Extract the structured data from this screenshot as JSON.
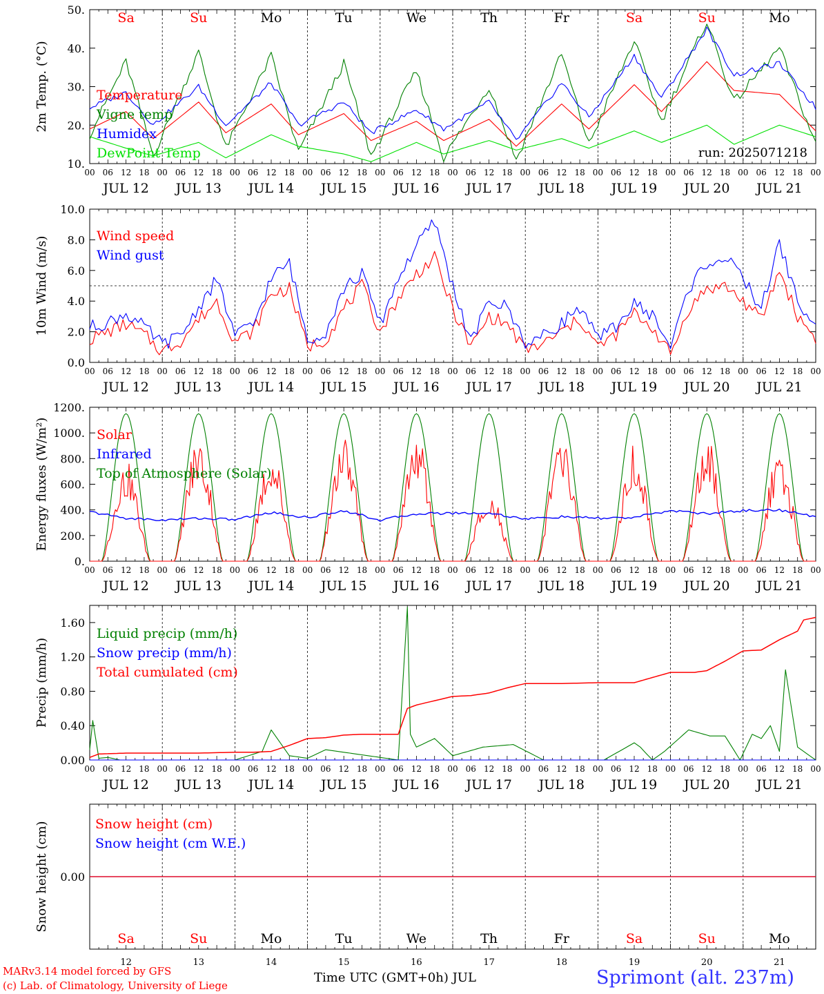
{
  "header": {
    "run_label": "run: 2025071218"
  },
  "footer": {
    "credit_1": "MARv3.14 model forced by GFS",
    "credit_2": "(c) Lab. of Climatology, University of Liege",
    "x_title": "Time UTC (GMT+0h) JUL",
    "location": "Sprimont (alt. 237m)",
    "day_numbers": [
      "12",
      "13",
      "14",
      "15",
      "16",
      "17",
      "18",
      "19",
      "20",
      "21"
    ]
  },
  "colors": {
    "red": "#ff0000",
    "blue": "#0000ff",
    "green": "#008000",
    "lightgreen": "#00e000",
    "location": "#3333ff"
  },
  "chart_data": [
    {
      "type": "line",
      "title": "",
      "ylabel": "2m Temp. (°C)",
      "ylim": [
        10,
        50
      ],
      "ytick_labels": [
        "10.",
        "20.",
        "30.",
        "40.",
        "50."
      ],
      "x_hour_labels": [
        "00",
        "06",
        "12",
        "18"
      ],
      "day_labels": [
        "JUL 12",
        "JUL 13",
        "JUL 14",
        "JUL 15",
        "JUL 16",
        "JUL 17",
        "JUL 18",
        "JUL 19",
        "JUL 20",
        "JUL 21"
      ],
      "weekday_labels": [
        "Sa",
        "Su",
        "Mo",
        "Tu",
        "We",
        "Th",
        "Fr",
        "Sa",
        "Su",
        "Mo"
      ],
      "weekend_flags": [
        true,
        true,
        false,
        false,
        false,
        false,
        false,
        true,
        true,
        false
      ],
      "x_unit": "hours from JUL 12 00 UTC",
      "x": [
        0,
        12,
        21,
        36,
        45,
        60,
        69,
        84,
        93,
        108,
        117,
        132,
        141,
        156,
        165,
        180,
        189,
        204,
        213,
        228,
        240
      ],
      "series": [
        {
          "name": "Temperature",
          "color": "#ff0000",
          "values": [
            19,
            23.5,
            16.5,
            26,
            18,
            25.5,
            17.5,
            23,
            16,
            21,
            16,
            21.5,
            14.5,
            25.5,
            19,
            30.5,
            23.5,
            36.5,
            29,
            28,
            18.5
          ]
        },
        {
          "name": "Vigne temp",
          "color": "#008000",
          "values": [
            17.5,
            36.5,
            12,
            39,
            14,
            38,
            13,
            36,
            12,
            34,
            11.5,
            30,
            11,
            38.5,
            15,
            42,
            21,
            47,
            26,
            40,
            15
          ]
        },
        {
          "name": "Humidex",
          "color": "#0000ff",
          "values": [
            24.5,
            28.5,
            20,
            30,
            20,
            31,
            20,
            26,
            18,
            24,
            19,
            26,
            16,
            31,
            22,
            38,
            27,
            45,
            33,
            36,
            24.5
          ]
        },
        {
          "name": "DewPoint Temp",
          "color": "#00e000",
          "values": [
            17,
            14,
            12,
            15.5,
            11.5,
            17.5,
            14.5,
            12.5,
            10.5,
            15.5,
            12.5,
            16,
            13.5,
            16.5,
            14,
            18.5,
            15.5,
            20,
            15,
            20,
            17
          ]
        }
      ]
    },
    {
      "type": "line",
      "title": "",
      "ylabel": "10m Wind (m/s)",
      "ylim": [
        0,
        10
      ],
      "ytick_labels": [
        "0.0",
        "2.0",
        "4.0",
        "6.0",
        "8.0",
        "10.0"
      ],
      "reference_line": 5,
      "x": [
        0,
        6,
        12,
        18,
        24,
        30,
        36,
        42,
        48,
        54,
        60,
        66,
        72,
        78,
        84,
        90,
        96,
        102,
        108,
        114,
        120,
        126,
        132,
        138,
        144,
        150,
        156,
        162,
        168,
        174,
        180,
        186,
        192,
        198,
        204,
        210,
        216,
        222,
        228,
        234,
        240
      ],
      "series": [
        {
          "name": "Wind speed",
          "color": "#ff0000",
          "values": [
            1.5,
            2,
            2.5,
            1.8,
            0.7,
            1.4,
            2.8,
            4,
            1.4,
            2,
            4.5,
            4.8,
            1,
            1.5,
            3.5,
            5,
            2,
            4.2,
            5.8,
            6.8,
            3.5,
            1,
            3,
            2.5,
            0.8,
            1.2,
            2,
            2.8,
            1,
            1.8,
            3.2,
            2.3,
            0.5,
            3.5,
            4.8,
            5,
            4,
            2.8,
            6,
            3,
            1.6
          ]
        },
        {
          "name": "Wind gust",
          "color": "#0000ff",
          "values": [
            2.3,
            2.6,
            3.2,
            2.3,
            1.2,
            1.7,
            3.6,
            5.4,
            1.8,
            2.4,
            5.5,
            6.5,
            1.5,
            2,
            4.8,
            5.8,
            2.5,
            5.5,
            7.6,
            9.2,
            5,
            1.3,
            4,
            3.6,
            1.3,
            1.7,
            2.6,
            3.6,
            1.5,
            2.4,
            3.8,
            3.1,
            1,
            4.8,
            6.5,
            6.8,
            5.5,
            3.5,
            7.8,
            4,
            2.2
          ]
        }
      ]
    },
    {
      "type": "line",
      "title": "",
      "ylabel": "Energy fluxes (W/m²)",
      "ylim": [
        0,
        1200
      ],
      "ytick_labels": [
        "0.",
        "200.",
        "400.",
        "600.",
        "800.",
        "1000.",
        "1200."
      ],
      "series": [
        {
          "name": "Solar",
          "color": "#ff0000",
          "peaks": [
            680,
            860,
            780,
            880,
            870,
            500,
            850,
            790,
            850,
            740
          ]
        },
        {
          "name": "Infrared",
          "color": "#0000ff",
          "x": [
            0,
            12,
            24,
            36,
            48,
            60,
            72,
            84,
            96,
            108,
            120,
            132,
            144,
            156,
            168,
            180,
            192,
            204,
            216,
            228,
            240
          ],
          "values": [
            385,
            335,
            320,
            335,
            325,
            380,
            340,
            395,
            320,
            370,
            375,
            375,
            330,
            345,
            335,
            340,
            395,
            370,
            395,
            400,
            345
          ]
        },
        {
          "name": "Top of Atmosphere (Solar)",
          "color": "#008000",
          "peak": 1150
        }
      ]
    },
    {
      "type": "line",
      "title": "",
      "ylabel": "Precip (mm/h)",
      "ylim": [
        0,
        1.8
      ],
      "ytick_labels": [
        "0.00",
        "0.40",
        "0.80",
        "1.20",
        "1.60"
      ],
      "series": [
        {
          "name": "Liquid precip (mm/h)",
          "color": "#008000",
          "x": [
            0,
            1,
            3,
            6,
            10,
            48,
            57,
            60,
            62,
            66,
            72,
            78,
            102,
            105,
            106,
            108,
            114,
            120,
            130,
            140,
            150,
            170,
            180,
            182,
            186,
            190,
            198,
            205,
            210,
            215,
            219,
            222,
            225,
            228,
            230,
            234,
            238,
            240
          ],
          "values": [
            0.12,
            0.46,
            0.02,
            0.03,
            0.0,
            0.0,
            0.1,
            0.35,
            0.25,
            0.05,
            0.02,
            0.12,
            0.0,
            1.78,
            0.3,
            0.15,
            0.25,
            0.05,
            0.15,
            0.18,
            0.0,
            0.0,
            0.2,
            0.15,
            0.0,
            0.1,
            0.35,
            0.28,
            0.28,
            0.0,
            0.3,
            0.25,
            0.4,
            0.1,
            1.05,
            0.15,
            0.05,
            0.0
          ]
        },
        {
          "name": "Snow precip (mm/h)",
          "color": "#0000ff",
          "x": [
            0,
            240
          ],
          "values": [
            0,
            0
          ]
        },
        {
          "name": "Total cumulated (cm)",
          "color": "#ff0000",
          "x": [
            0,
            3,
            12,
            24,
            36,
            48,
            54,
            60,
            66,
            72,
            78,
            84,
            90,
            96,
            102,
            105,
            108,
            114,
            120,
            126,
            132,
            138,
            144,
            156,
            168,
            174,
            180,
            192,
            200,
            204,
            210,
            216,
            222,
            228,
            234,
            236,
            240
          ],
          "values": [
            0.03,
            0.07,
            0.08,
            0.08,
            0.08,
            0.09,
            0.09,
            0.1,
            0.17,
            0.25,
            0.26,
            0.29,
            0.3,
            0.3,
            0.3,
            0.6,
            0.64,
            0.69,
            0.74,
            0.75,
            0.78,
            0.84,
            0.89,
            0.89,
            0.9,
            0.9,
            0.9,
            1.02,
            1.02,
            1.04,
            1.15,
            1.27,
            1.28,
            1.4,
            1.5,
            1.63,
            1.66
          ]
        }
      ]
    },
    {
      "type": "line",
      "title": "",
      "ylabel": "Snow height (cm)",
      "ytick_labels": [
        "0.00"
      ],
      "weekday_labels": [
        "Sa",
        "Su",
        "Mo",
        "Tu",
        "We",
        "Th",
        "Fr",
        "Sa",
        "Su",
        "Mo"
      ],
      "weekend_flags": [
        true,
        true,
        false,
        false,
        false,
        false,
        false,
        true,
        true,
        false
      ],
      "series": [
        {
          "name": "Snow height (cm)",
          "color": "#ff0000",
          "x": [
            0,
            240
          ],
          "values": [
            0,
            0
          ]
        },
        {
          "name": "Snow height (cm W.E.)",
          "color": "#0000ff",
          "x": [
            0,
            240
          ],
          "values": [
            0,
            0
          ]
        }
      ]
    }
  ]
}
